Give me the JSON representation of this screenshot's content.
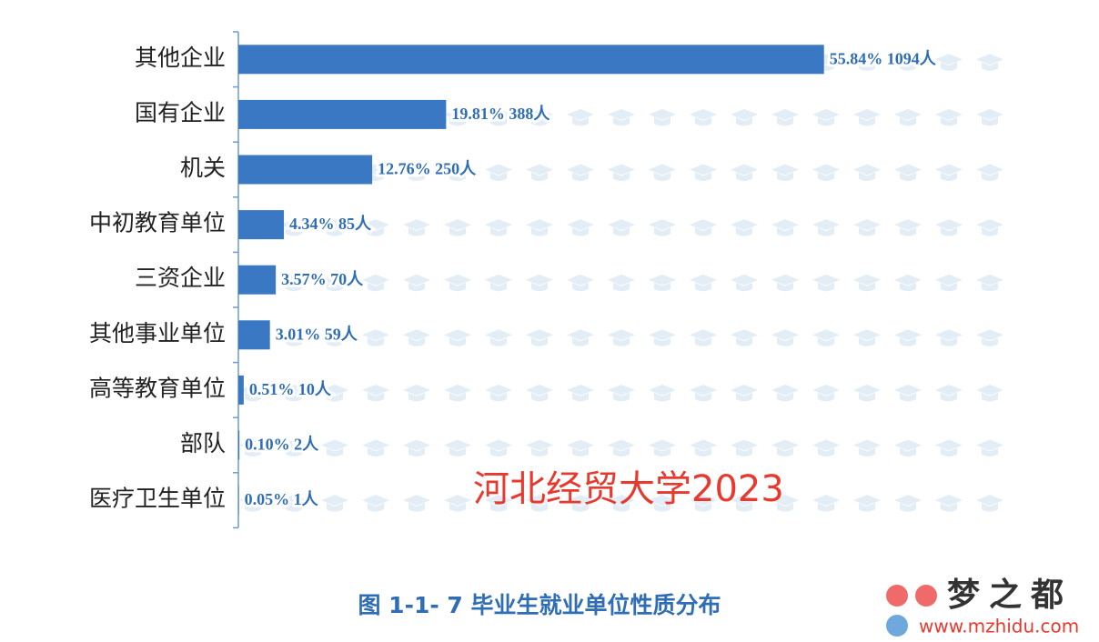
{
  "chart_data": {
    "type": "barh",
    "title": "图 1-1- 7 毕业生就业单位性质分布",
    "annotations": [
      "河北经贸大学2023",
      "梦之都",
      "www.mzhidu.com"
    ],
    "categories": [
      "其他企业",
      "国有企业",
      "机关",
      "中初教育单位",
      "三资企业",
      "其他事业单位",
      "高等教育单位",
      "部队",
      "医疗卫生单位"
    ],
    "values": [
      55.84,
      19.81,
      12.76,
      4.34,
      3.57,
      3.01,
      0.51,
      0.1,
      0.05
    ],
    "value_labels": [
      "55.84% 1094人",
      "19.81% 388人",
      "12.76% 250人",
      "4.34% 85人",
      "3.57% 70人",
      "3.01% 59人",
      "0.51% 10人",
      "0.10% 2人",
      "0.05% 1人"
    ],
    "color": "#3a78c3",
    "xlim": [
      0,
      72
    ]
  }
}
